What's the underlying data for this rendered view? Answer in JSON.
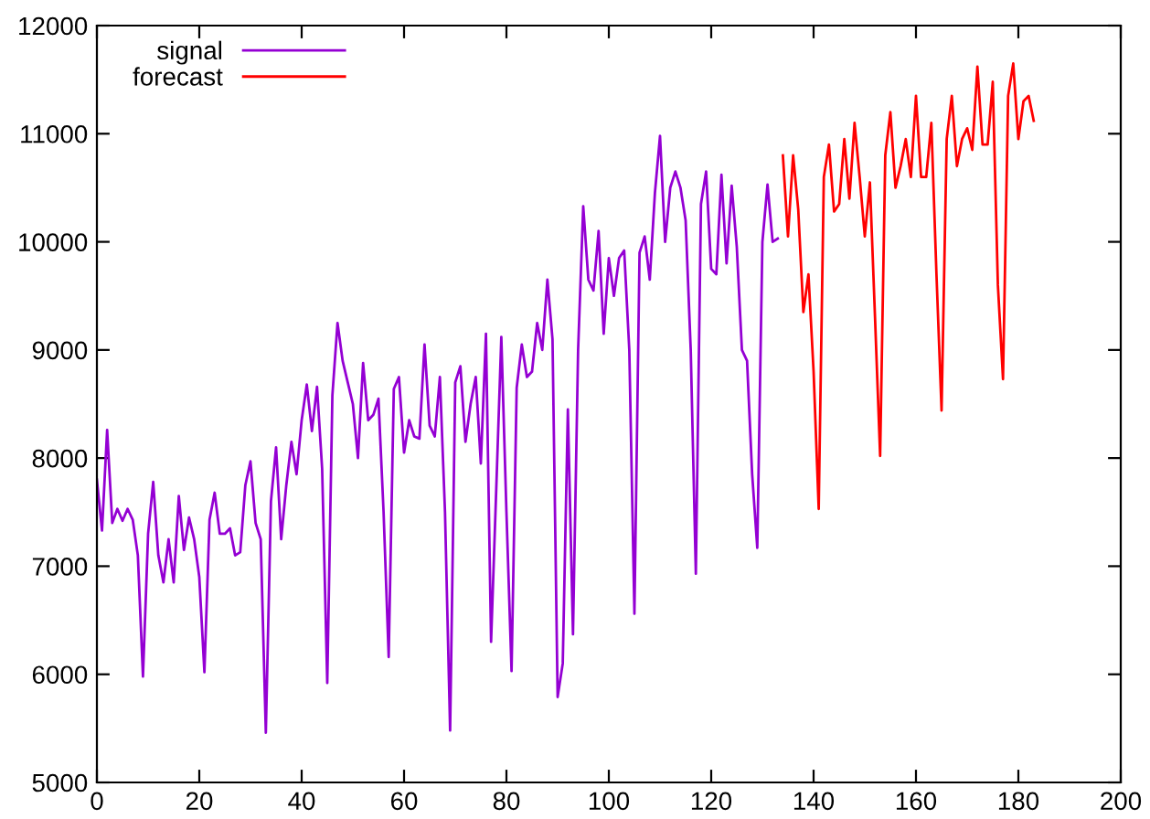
{
  "chart_data": {
    "type": "line",
    "legend": "top left",
    "grid": false,
    "marker": "none",
    "line_style": "solid",
    "xlim": [
      0,
      200
    ],
    "xticks": [
      0,
      20,
      40,
      60,
      80,
      100,
      120,
      140,
      160,
      180,
      200
    ],
    "ylim": [
      5000,
      12000
    ],
    "yticks": [
      5000,
      6000,
      7000,
      8000,
      9000,
      10000,
      11000,
      12000
    ],
    "series": [
      {
        "name": "signal",
        "color": "#9400d3",
        "x": [
          0,
          1,
          2,
          3,
          4,
          5,
          6,
          7,
          8,
          9,
          10,
          11,
          12,
          13,
          14,
          15,
          16,
          17,
          18,
          19,
          20,
          21,
          22,
          23,
          24,
          25,
          26,
          27,
          28,
          29,
          30,
          31,
          32,
          33,
          34,
          35,
          36,
          37,
          38,
          39,
          40,
          41,
          42,
          43,
          44,
          45,
          46,
          47,
          48,
          49,
          50,
          51,
          52,
          53,
          54,
          55,
          56,
          57,
          58,
          59,
          60,
          61,
          62,
          63,
          64,
          65,
          66,
          67,
          68,
          69,
          70,
          71,
          72,
          73,
          74,
          75,
          76,
          77,
          78,
          79,
          80,
          81,
          82,
          83,
          84,
          85,
          86,
          87,
          88,
          89,
          90,
          91,
          92,
          93,
          94,
          95,
          96,
          97,
          98,
          99,
          100,
          101,
          102,
          103,
          104,
          105,
          106,
          107,
          108,
          109,
          110,
          111,
          112,
          113,
          114,
          115,
          116,
          117,
          118,
          119,
          120,
          121,
          122,
          123,
          124,
          125,
          126,
          127,
          128,
          129,
          130,
          131,
          132,
          133
        ],
        "values": [
          7800,
          7330,
          8260,
          7400,
          7530,
          7420,
          7530,
          7430,
          7100,
          5980,
          7300,
          7780,
          7100,
          6850,
          7250,
          6850,
          7650,
          7150,
          7450,
          7250,
          6900,
          6020,
          7430,
          7680,
          7300,
          7300,
          7350,
          7100,
          7130,
          7750,
          7970,
          7400,
          7250,
          5460,
          7600,
          8100,
          7250,
          7750,
          8150,
          7850,
          8350,
          8680,
          8250,
          8660,
          7900,
          5920,
          8580,
          9250,
          8900,
          8700,
          8500,
          8000,
          8880,
          8350,
          8400,
          8550,
          7500,
          6160,
          8640,
          8750,
          8050,
          8350,
          8200,
          8180,
          9050,
          8300,
          8200,
          8750,
          7500,
          5480,
          8700,
          8850,
          8150,
          8500,
          8750,
          7950,
          9150,
          6300,
          7700,
          9120,
          7500,
          6030,
          8650,
          9050,
          8750,
          8800,
          9250,
          9000,
          9650,
          9100,
          5790,
          6100,
          8450,
          6370,
          9000,
          10330,
          9650,
          9550,
          10100,
          9150,
          9850,
          9500,
          9850,
          9920,
          9000,
          6560,
          9900,
          10050,
          9650,
          10450,
          10980,
          10000,
          10500,
          10650,
          10500,
          10200,
          9000,
          6930,
          10350,
          10650,
          9750,
          9700,
          10620,
          9800,
          10520,
          9950,
          9000,
          8900,
          7850,
          7170,
          10000,
          10530,
          10000,
          10030
        ]
      },
      {
        "name": "forecast",
        "color": "#ff0000",
        "x": [
          134,
          135,
          136,
          137,
          138,
          139,
          140,
          141,
          142,
          143,
          144,
          145,
          146,
          147,
          148,
          149,
          150,
          151,
          152,
          153,
          154,
          155,
          156,
          157,
          158,
          159,
          160,
          161,
          162,
          163,
          164,
          165,
          166,
          167,
          168,
          169,
          170,
          171,
          172,
          173,
          174,
          175,
          176,
          177,
          178,
          179,
          180,
          181,
          182,
          183
        ],
        "values": [
          10800,
          10050,
          10800,
          10300,
          9350,
          9700,
          8800,
          7530,
          10600,
          10900,
          10280,
          10350,
          10950,
          10400,
          11100,
          10600,
          10050,
          10550,
          9300,
          8020,
          10800,
          11200,
          10500,
          10700,
          10950,
          10600,
          11350,
          10600,
          10600,
          11100,
          9700,
          8440,
          10950,
          11350,
          10700,
          10950,
          11050,
          10850,
          11620,
          10900,
          10900,
          11480,
          9600,
          8730,
          11350,
          11650,
          10950,
          11300,
          11350,
          11120
        ]
      }
    ]
  }
}
